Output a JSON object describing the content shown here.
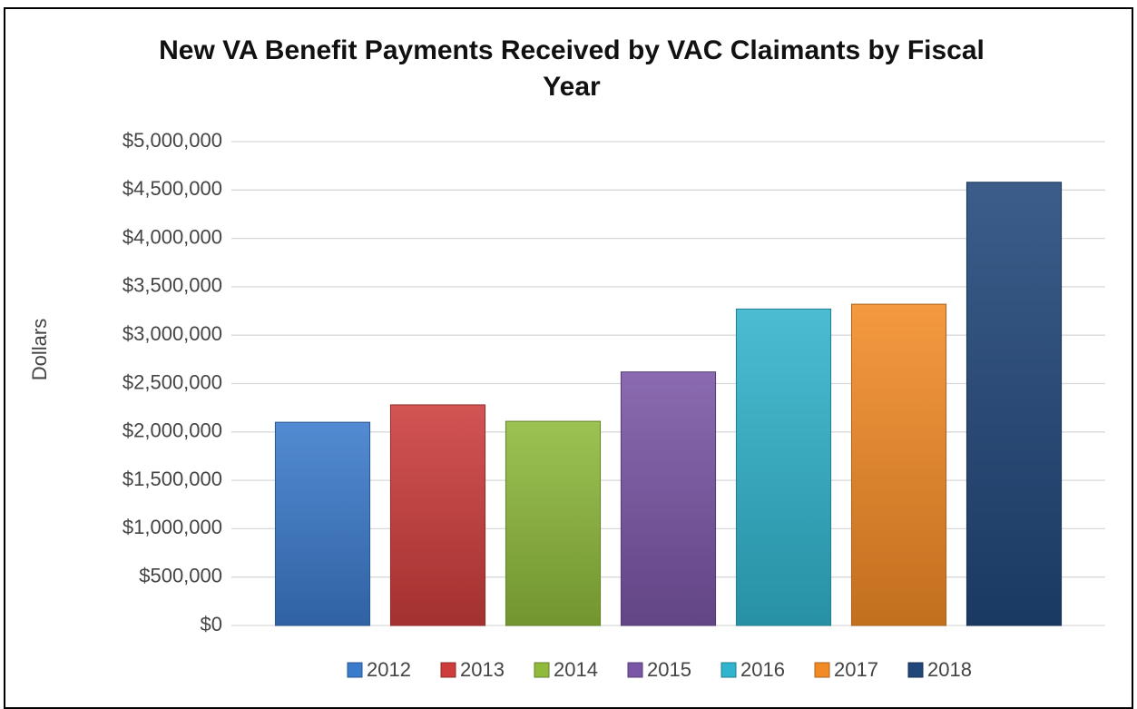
{
  "chart_data": {
    "type": "bar",
    "title": "New VA Benefit Payments Received by VAC Claimants by Fiscal Year",
    "y_label": "Dollars",
    "categories": [
      null
    ],
    "series": [
      {
        "name": "2012",
        "color": "#3b7bcc",
        "values": [
          2100000
        ]
      },
      {
        "name": "2013",
        "color": "#cc3d3b",
        "values": [
          2280000
        ]
      },
      {
        "name": "2014",
        "color": "#8fba3c",
        "values": [
          2110000
        ]
      },
      {
        "name": "2015",
        "color": "#7b56a6",
        "values": [
          2620000
        ]
      },
      {
        "name": "2016",
        "color": "#31b4cd",
        "values": [
          3270000
        ]
      },
      {
        "name": "2017",
        "color": "#f28b26",
        "values": [
          3320000
        ]
      },
      {
        "name": "2018",
        "color": "#21477a",
        "values": [
          4580000
        ]
      }
    ],
    "ylim": [
      0,
      5000000
    ],
    "yticks": [
      {
        "value": 0,
        "label": "$0"
      },
      {
        "value": 500000,
        "label": "$500,000"
      },
      {
        "value": 1000000,
        "label": "$1,000,000"
      },
      {
        "value": 1500000,
        "label": "$1,500,000"
      },
      {
        "value": 2000000,
        "label": "$2,000,000"
      },
      {
        "value": 2500000,
        "label": "$2,500,000"
      },
      {
        "value": 3000000,
        "label": "$3,000,000"
      },
      {
        "value": 3500000,
        "label": "$3,500,000"
      },
      {
        "value": 4000000,
        "label": "$4,000,000"
      },
      {
        "value": 4500000,
        "label": "$4,500,000"
      },
      {
        "value": 5000000,
        "label": "$5,000,000"
      }
    ],
    "grid": true,
    "legend": "bottom"
  }
}
